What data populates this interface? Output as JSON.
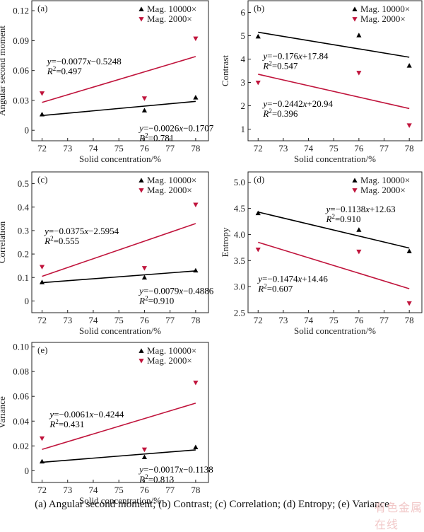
{
  "chart_data": [
    {
      "panel": "(a)",
      "type": "scatter",
      "title": "",
      "xlabel": "Solid concentration/%",
      "ylabel": "Angular second moment",
      "xlim": [
        71.6,
        78.5
      ],
      "ylim": [
        -0.0105,
        0.13
      ],
      "xticks": [
        72,
        73,
        74,
        75,
        76,
        77,
        78
      ],
      "yticks": [
        0,
        0.03,
        0.06,
        0.09,
        0.12
      ],
      "ytick_labels": [
        "0",
        "0.03",
        "0.06",
        "0.09",
        "0.12"
      ],
      "legend": "top-right",
      "series": [
        {
          "name": "Mag. 10000×",
          "marker": "triangle-up",
          "color": "#000000",
          "x": [
            72,
            76,
            78
          ],
          "y": [
            0.016,
            0.02,
            0.033
          ],
          "fit": {
            "x": [
              72,
              78
            ],
            "y": [
              0.0148,
              0.029
            ]
          },
          "equation": "y=−0.0026x−0.1707",
          "r2": "R²=0.781",
          "r2_value": "0.781",
          "eq_anchor": [
            75.8,
            -0.001
          ]
        },
        {
          "name": "Mag. 2000×",
          "marker": "triangle-down",
          "color": "#c0143c",
          "x": [
            72,
            76,
            78
          ],
          "y": [
            0.037,
            0.032,
            0.092
          ],
          "fit": {
            "x": [
              72,
              78
            ],
            "y": [
              0.028,
              0.074
            ]
          },
          "equation": "y=−0.0077x−0.5248",
          "r2": "R²=0.497",
          "r2_value": "0.497",
          "eq_anchor": [
            72.2,
            0.066
          ]
        }
      ]
    },
    {
      "panel": "(b)",
      "type": "scatter",
      "xlabel": "Solid concentration/%",
      "ylabel": "Contrast",
      "xlim": [
        71.6,
        78.5
      ],
      "ylim": [
        0.5,
        6.5
      ],
      "xticks": [
        72,
        73,
        74,
        75,
        76,
        77,
        78
      ],
      "yticks": [
        1,
        2,
        3,
        4,
        5,
        6
      ],
      "ytick_labels": [
        "1",
        "2",
        "3",
        "4",
        "5",
        "6"
      ],
      "legend": "top-right",
      "series": [
        {
          "name": "Mag. 10000×",
          "marker": "triangle-up",
          "color": "#000000",
          "x": [
            72,
            76,
            78
          ],
          "y": [
            4.97,
            5.02,
            3.72
          ],
          "fit": {
            "x": [
              72,
              78
            ],
            "y": [
              5.15,
              4.08
            ]
          },
          "equation": "y=−0.176x+17.84",
          "r2": "R²=0.547",
          "r2_value": "0.547",
          "eq_anchor": [
            72.2,
            4.0
          ]
        },
        {
          "name": "Mag. 2000×",
          "marker": "triangle-down",
          "color": "#c0143c",
          "x": [
            72,
            76,
            78
          ],
          "y": [
            2.99,
            3.41,
            1.16
          ],
          "fit": {
            "x": [
              72,
              78
            ],
            "y": [
              3.35,
              1.88
            ]
          },
          "equation": "y=−0.2442x+20.94",
          "r2": "R²=0.396",
          "r2_value": "0.396",
          "eq_anchor": [
            72.2,
            1.95
          ]
        }
      ]
    },
    {
      "panel": "(c)",
      "type": "scatter",
      "xlabel": "Solid concentration/%",
      "ylabel": "Correlation",
      "xlim": [
        71.6,
        78.5
      ],
      "ylim": [
        -0.05,
        0.55
      ],
      "xticks": [
        72,
        73,
        74,
        75,
        76,
        77,
        78
      ],
      "yticks": [
        0,
        0.1,
        0.2,
        0.3,
        0.4,
        0.5
      ],
      "ytick_labels": [
        "0",
        "0.1",
        "0.2",
        "0.3",
        "0.4",
        "0.5"
      ],
      "legend": "top-right",
      "series": [
        {
          "name": "Mag. 10000×",
          "marker": "triangle-up",
          "color": "#000000",
          "x": [
            72,
            76,
            78
          ],
          "y": [
            0.08,
            0.1,
            0.13
          ],
          "fit": {
            "x": [
              72,
              78
            ],
            "y": [
              0.078,
              0.128
            ]
          },
          "equation": "y=−0.0079x−0.4886",
          "r2": "R²=0.910",
          "r2_value": "0.910",
          "eq_anchor": [
            75.8,
            0.03
          ]
        },
        {
          "name": "Mag. 2000×",
          "marker": "triangle-down",
          "color": "#c0143c",
          "x": [
            72,
            76,
            78
          ],
          "y": [
            0.145,
            0.14,
            0.41
          ],
          "fit": {
            "x": [
              72,
              78
            ],
            "y": [
              0.105,
              0.33
            ]
          },
          "equation": "y=−0.0375x−2.5954",
          "r2": "R²=0.555",
          "r2_value": "0.555",
          "eq_anchor": [
            72.1,
            0.285
          ]
        }
      ]
    },
    {
      "panel": "(d)",
      "type": "scatter",
      "xlabel": "Solid concentration/%",
      "ylabel": "Entropy",
      "xlim": [
        71.6,
        78.5
      ],
      "ylim": [
        2.5,
        5.2
      ],
      "xticks": [
        72,
        73,
        74,
        75,
        76,
        77,
        78
      ],
      "yticks": [
        2.5,
        3.0,
        3.5,
        4.0,
        4.5,
        5.0
      ],
      "ytick_labels": [
        "2.5",
        "3.0",
        "3.5",
        "4.0",
        "4.5",
        "5.0"
      ],
      "legend": "top-right",
      "series": [
        {
          "name": "Mag. 10000×",
          "marker": "triangle-up",
          "color": "#000000",
          "x": [
            72,
            76,
            78
          ],
          "y": [
            4.41,
            4.09,
            3.68
          ],
          "fit": {
            "x": [
              72,
              78
            ],
            "y": [
              4.43,
              3.74
            ]
          },
          "equation": "y=−0.1138x+12.63",
          "r2": "R²=0.910",
          "r2_value": "0.910",
          "eq_anchor": [
            74.7,
            4.43
          ]
        },
        {
          "name": "Mag. 2000×",
          "marker": "triangle-down",
          "color": "#c0143c",
          "x": [
            72,
            76,
            78
          ],
          "y": [
            3.71,
            3.67,
            2.68
          ],
          "fit": {
            "x": [
              72,
              78
            ],
            "y": [
              3.85,
              2.96
            ]
          },
          "equation": "y=−0.1474x+14.46",
          "r2": "R²=0.607",
          "r2_value": "0.607",
          "eq_anchor": [
            72.0,
            3.09
          ]
        }
      ]
    },
    {
      "panel": "(e)",
      "type": "scatter",
      "xlabel": "Solid concentration/%",
      "ylabel": "Variance",
      "xlim": [
        71.6,
        78.5
      ],
      "ylim": [
        -0.0095,
        0.1035
      ],
      "xticks": [
        72,
        73,
        74,
        75,
        76,
        77,
        78
      ],
      "yticks": [
        0,
        0.02,
        0.04,
        0.06,
        0.08,
        0.1
      ],
      "ytick_labels": [
        "0",
        "0.02",
        "0.04",
        "0.06",
        "0.08",
        "0.10"
      ],
      "legend": "top-right",
      "series": [
        {
          "name": "Mag. 10000×",
          "marker": "triangle-up",
          "color": "#000000",
          "x": [
            72,
            76,
            78
          ],
          "y": [
            0.0075,
            0.011,
            0.019
          ],
          "fit": {
            "x": [
              72,
              78
            ],
            "y": [
              0.0068,
              0.0168
            ]
          },
          "equation": "y=−0.0017x−0.1138",
          "r2": "R²=0.813",
          "r2_value": "0.813",
          "eq_anchor": [
            75.8,
            -0.0015
          ]
        },
        {
          "name": "Mag. 2000×",
          "marker": "triangle-down",
          "color": "#c0143c",
          "x": [
            72,
            76,
            78
          ],
          "y": [
            0.026,
            0.017,
            0.071
          ],
          "fit": {
            "x": [
              72,
              78
            ],
            "y": [
              0.0172,
              0.0545
            ]
          },
          "equation": "y=−0.0061x−0.4244",
          "r2": "R²=0.431",
          "r2_value": "0.431",
          "eq_anchor": [
            72.3,
            0.043
          ]
        }
      ]
    }
  ],
  "caption": "(a)  Angular  second  moment; (b) Contrast; (c) Correlation;  (d) Entropy; (e) Variance",
  "watermark": "有色金属在线"
}
